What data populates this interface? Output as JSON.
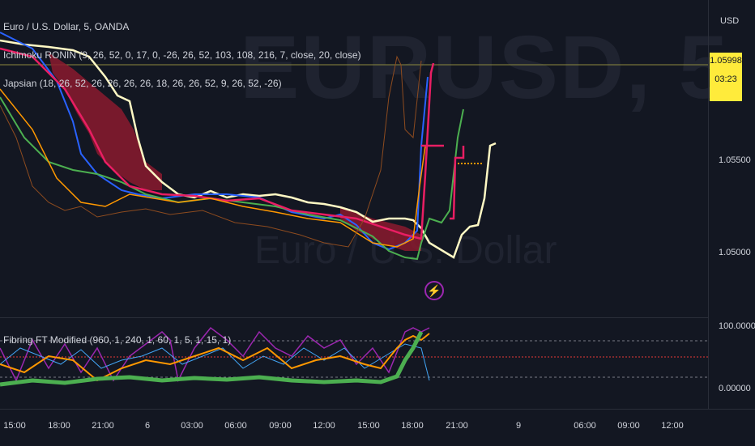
{
  "symbol": {
    "watermark": "EURUSD, 5",
    "description_watermark": "Euro / U.S. Dollar",
    "legend_title": "Euro / U.S. Dollar, 5, OANDA"
  },
  "indicators": [
    {
      "label": "Ichimoku RONIN (9, 26, 52, 0, 17, 0, -26, 26, 52, 103, 108, 216, 7, close, 20, close)"
    },
    {
      "label": "Japsian (18, 26, 52, 26, 26, 26, 26, 18, 26, 26, 52, 9, 26, 52, -26)"
    },
    {
      "label": "Fibring FT Modified (960, 1, 240, 1, 60, 1, 5, 1, 15, 1)"
    }
  ],
  "price_scale": {
    "currency": "USD",
    "ticks": [
      "1.05500",
      "1.05000"
    ],
    "current_price": "1.05998",
    "countdown": "03:23",
    "badge_color": "#ffeb3b"
  },
  "oscillator_scale": {
    "ticks": [
      "100.00000",
      "0.00000"
    ]
  },
  "time_axis": {
    "ticks": [
      "15:00",
      "18:00",
      "21:00",
      "6",
      "03:00",
      "06:00",
      "09:00",
      "12:00",
      "15:00",
      "18:00",
      "21:00",
      "9",
      "06:00",
      "09:00",
      "12:00"
    ]
  },
  "icons": {
    "flash": "flash-icon"
  },
  "colors": {
    "background": "#131722",
    "cloud": "#b71c3c",
    "price_line": "#fff9c4",
    "blue": "#2962ff",
    "green": "#4caf50",
    "orange": "#ff9800",
    "purple": "#9c27b0",
    "brown": "#8d4b1f"
  }
}
